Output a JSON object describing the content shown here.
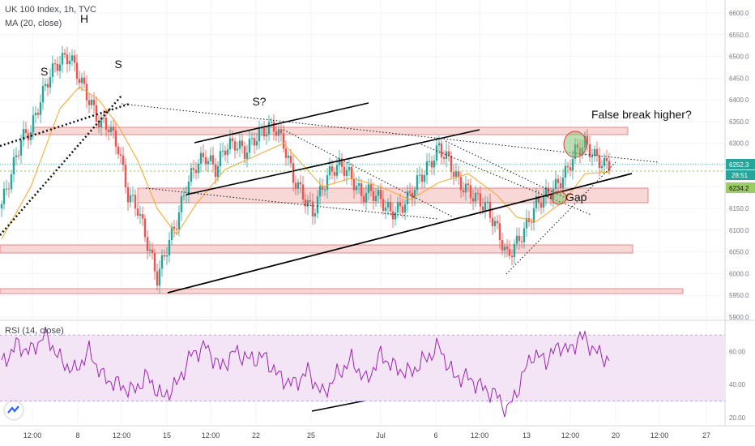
{
  "header": {
    "symbol_line": "UK 100 Index, 1h, TVC",
    "ma_line": "MA (20, close)",
    "rsi_line": "RSI (14, close)"
  },
  "annotations": {
    "s_left": "S",
    "h": "H",
    "s_right": "S",
    "s_question": "S?",
    "false_break": "False break higher?",
    "gap": "Gap"
  },
  "price_labels": {
    "last": "6252.3",
    "countdown": "28:51",
    "ma": "6234.2"
  },
  "colors": {
    "up": "#26a69a",
    "down": "#ef5350",
    "ma": "#f5a623",
    "rsi": "#9c27b0",
    "rsi_band": "#f3e5f5",
    "zone_fill": "#f5c6c6",
    "zone_stroke": "#e57373",
    "last_price": "#26a69a"
  },
  "chart_data": [
    {
      "type": "candlestick",
      "title": "UK 100 Index, 1h, TVC",
      "y_ticks": [
        5900,
        5950,
        6000,
        6050,
        6100,
        6150,
        6200,
        6250,
        6300,
        6350,
        6400,
        6450,
        6500,
        6550,
        6600
      ],
      "y_tick_labels": [
        "5900.0",
        "5950.0",
        "6000.0",
        "6050.0",
        "6100.0",
        "6150.0",
        "6200.0",
        "6250.0",
        "6300.0",
        "6350.0",
        "6400.0",
        "6450.0",
        "6500.0",
        "6550.0",
        "6600.0"
      ],
      "ylim": [
        5900,
        6615
      ],
      "x_ticks": [
        "12:00",
        "8",
        "12:00",
        "15",
        "12:00",
        "22",
        "25",
        "Jul",
        "6",
        "12:00",
        "13",
        "12:00",
        "20",
        "12:00",
        "27"
      ],
      "indicator": "MA (20, close)",
      "close_path": [
        [
          0,
          6160
        ],
        [
          2,
          6230
        ],
        [
          4,
          6310
        ],
        [
          6,
          6330
        ],
        [
          8,
          6400
        ],
        [
          10,
          6460
        ],
        [
          12,
          6490
        ],
        [
          14,
          6500
        ],
        [
          16,
          6450
        ],
        [
          18,
          6400
        ],
        [
          20,
          6350
        ],
        [
          22,
          6340
        ],
        [
          24,
          6290
        ],
        [
          26,
          6180
        ],
        [
          28,
          6150
        ],
        [
          30,
          6070
        ],
        [
          32,
          5990
        ],
        [
          34,
          6060
        ],
        [
          36,
          6120
        ],
        [
          38,
          6200
        ],
        [
          40,
          6250
        ],
        [
          42,
          6270
        ],
        [
          44,
          6240
        ],
        [
          46,
          6290
        ],
        [
          48,
          6300
        ],
        [
          50,
          6280
        ],
        [
          52,
          6310
        ],
        [
          54,
          6330
        ],
        [
          56,
          6340
        ],
        [
          58,
          6300
        ],
        [
          60,
          6220
        ],
        [
          62,
          6180
        ],
        [
          64,
          6140
        ],
        [
          66,
          6200
        ],
        [
          68,
          6240
        ],
        [
          70,
          6250
        ],
        [
          72,
          6220
        ],
        [
          74,
          6180
        ],
        [
          76,
          6190
        ],
        [
          78,
          6170
        ],
        [
          80,
          6140
        ],
        [
          82,
          6150
        ],
        [
          84,
          6180
        ],
        [
          86,
          6220
        ],
        [
          88,
          6250
        ],
        [
          90,
          6290
        ],
        [
          92,
          6260
        ],
        [
          94,
          6210
        ],
        [
          96,
          6190
        ],
        [
          98,
          6170
        ],
        [
          100,
          6150
        ],
        [
          102,
          6100
        ],
        [
          104,
          6040
        ],
        [
          106,
          6070
        ],
        [
          108,
          6110
        ],
        [
          110,
          6160
        ],
        [
          112,
          6180
        ],
        [
          114,
          6200
        ],
        [
          116,
          6230
        ],
        [
          118,
          6280
        ],
        [
          120,
          6300
        ],
        [
          122,
          6270
        ],
        [
          124,
          6250
        ],
        [
          125,
          6252
        ]
      ],
      "ma_path": [
        [
          0,
          6080
        ],
        [
          6,
          6200
        ],
        [
          12,
          6380
        ],
        [
          16,
          6430
        ],
        [
          20,
          6400
        ],
        [
          24,
          6340
        ],
        [
          28,
          6260
        ],
        [
          32,
          6150
        ],
        [
          36,
          6090
        ],
        [
          40,
          6160
        ],
        [
          46,
          6240
        ],
        [
          52,
          6270
        ],
        [
          58,
          6300
        ],
        [
          62,
          6250
        ],
        [
          66,
          6200
        ],
        [
          72,
          6220
        ],
        [
          78,
          6200
        ],
        [
          84,
          6170
        ],
        [
          90,
          6210
        ],
        [
          96,
          6230
        ],
        [
          102,
          6180
        ],
        [
          106,
          6130
        ],
        [
          110,
          6120
        ],
        [
          116,
          6170
        ],
        [
          120,
          6230
        ],
        [
          125,
          6234
        ]
      ]
    },
    {
      "type": "line",
      "title": "RSI (14, close)",
      "y_ticks": [
        20,
        40,
        60
      ],
      "y_tick_labels": [
        "20.00",
        "40.00",
        "60.00"
      ],
      "bands": [
        30,
        70
      ],
      "ylim": [
        18,
        76
      ],
      "values": [
        [
          0,
          52
        ],
        [
          3,
          64
        ],
        [
          6,
          60
        ],
        [
          9,
          71
        ],
        [
          12,
          55
        ],
        [
          15,
          48
        ],
        [
          18,
          60
        ],
        [
          21,
          44
        ],
        [
          24,
          40
        ],
        [
          27,
          36
        ],
        [
          30,
          45
        ],
        [
          33,
          32
        ],
        [
          36,
          40
        ],
        [
          39,
          58
        ],
        [
          42,
          63
        ],
        [
          45,
          50
        ],
        [
          48,
          60
        ],
        [
          51,
          55
        ],
        [
          54,
          57
        ],
        [
          57,
          45
        ],
        [
          60,
          40
        ],
        [
          63,
          48
        ],
        [
          66,
          34
        ],
        [
          69,
          46
        ],
        [
          72,
          55
        ],
        [
          75,
          42
        ],
        [
          78,
          58
        ],
        [
          81,
          50
        ],
        [
          84,
          47
        ],
        [
          87,
          55
        ],
        [
          90,
          63
        ],
        [
          93,
          45
        ],
        [
          96,
          44
        ],
        [
          99,
          38
        ],
        [
          102,
          33
        ],
        [
          104,
          24
        ],
        [
          106,
          36
        ],
        [
          109,
          58
        ],
        [
          112,
          55
        ],
        [
          115,
          64
        ],
        [
          117,
          60
        ],
        [
          119,
          70
        ],
        [
          121,
          64
        ],
        [
          123,
          58
        ],
        [
          125,
          55
        ]
      ]
    }
  ]
}
